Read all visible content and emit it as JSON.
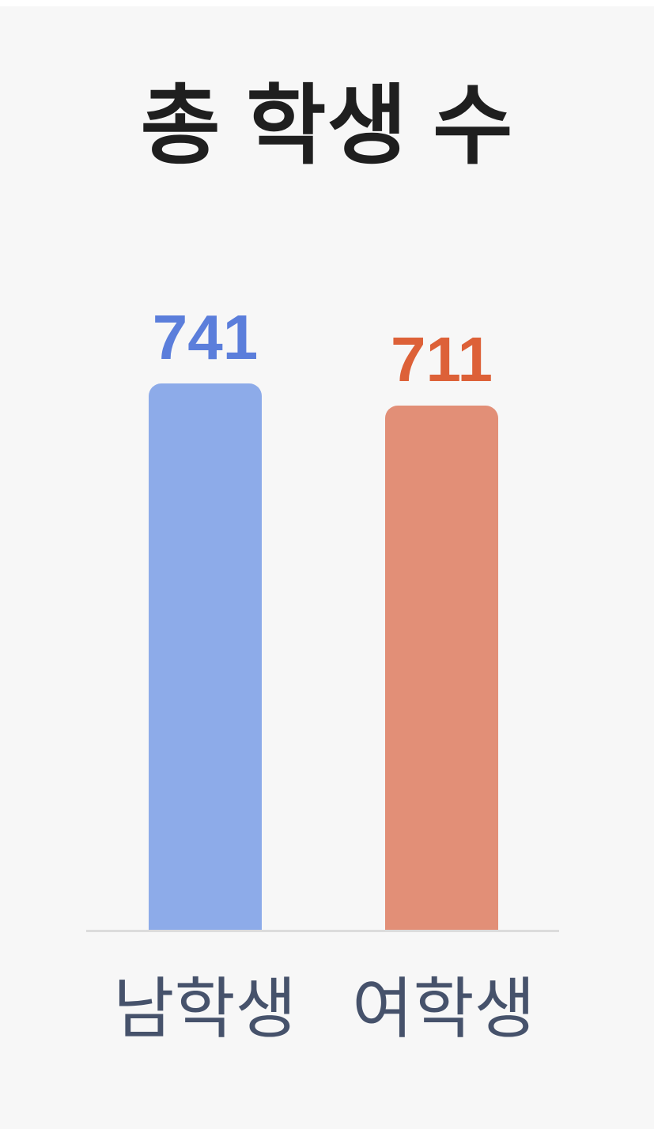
{
  "page": {
    "background_color": "#f7f7f7",
    "top_strip_color": "#ffffff"
  },
  "chart_data": {
    "type": "bar",
    "title": "총 학생 수",
    "categories": [
      "남학생",
      "여학생"
    ],
    "values": [
      741,
      711
    ],
    "value_labels": [
      "741",
      "711"
    ],
    "series": [
      {
        "name": "남학생",
        "value": 741,
        "bar_color": "#8dabe9",
        "label_color": "#5b7edb"
      },
      {
        "name": "여학생",
        "value": 711,
        "bar_color": "#e28f77",
        "label_color": "#dd6138"
      }
    ],
    "xlabel": "",
    "ylabel": "",
    "ylim": [
      0,
      790
    ],
    "grid": false,
    "legend": false,
    "orientation": "vertical",
    "colors": {
      "title": "#1f1f1f",
      "category_label": "#46526b",
      "axis_line": "#dcdcdc"
    }
  }
}
